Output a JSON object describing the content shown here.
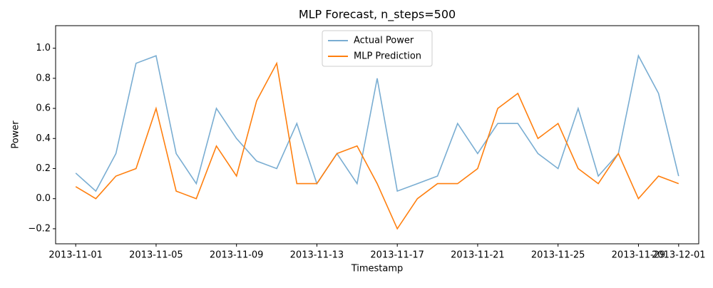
{
  "chart_data": {
    "type": "line",
    "title": "MLP Forecast, n_steps=500",
    "x_label": "Timestamp",
    "y_label": "Power",
    "x": [
      "2013-11-01",
      "2013-11-02",
      "2013-11-03",
      "2013-11-04",
      "2013-11-05",
      "2013-11-06",
      "2013-11-07",
      "2013-11-08",
      "2013-11-09",
      "2013-11-10",
      "2013-11-11",
      "2013-11-12",
      "2013-11-13",
      "2013-11-14",
      "2013-11-15",
      "2013-11-16",
      "2013-11-17",
      "2013-11-18",
      "2013-11-19",
      "2013-11-20",
      "2013-11-21",
      "2013-11-22",
      "2013-11-23",
      "2013-11-24",
      "2013-11-25",
      "2013-11-26",
      "2013-11-27",
      "2013-11-28",
      "2013-11-29",
      "2013-11-30",
      "2013-12-01"
    ],
    "series": [
      {
        "name": "Actual Power",
        "color": "#1f77b4",
        "opacity": 0.6,
        "values": [
          0.17,
          0.05,
          0.3,
          0.9,
          0.95,
          0.3,
          0.1,
          0.6,
          0.4,
          0.25,
          0.2,
          0.5,
          0.1,
          0.3,
          0.1,
          0.8,
          0.05,
          0.1,
          0.15,
          0.5,
          0.3,
          0.5,
          0.5,
          0.3,
          0.2,
          0.6,
          0.15,
          0.3,
          0.95,
          0.7,
          0.15
        ]
      },
      {
        "name": "MLP Prediction",
        "color": "#ff7f0e",
        "opacity": 1,
        "values": [
          0.08,
          0.0,
          0.15,
          0.2,
          0.6,
          0.05,
          0.0,
          0.35,
          0.15,
          0.65,
          0.9,
          0.1,
          0.1,
          0.3,
          0.35,
          0.1,
          -0.2,
          0.0,
          0.1,
          0.1,
          0.2,
          0.6,
          0.7,
          0.4,
          0.5,
          0.2,
          0.1,
          0.3,
          0.0,
          0.15,
          0.1
        ]
      }
    ],
    "xlim": [
      "2013-10-31",
      "2013-12-02"
    ],
    "xticks": [
      "2013-11-01",
      "2013-11-05",
      "2013-11-09",
      "2013-11-13",
      "2013-11-17",
      "2013-11-21",
      "2013-11-25",
      "2013-11-29",
      "2013-12-01"
    ],
    "ylim": [
      -0.3,
      1.15
    ],
    "yticks": [
      {
        "value": -0.2,
        "label": "−0.2"
      },
      {
        "value": 0,
        "label": "0.0"
      },
      {
        "value": 0.2,
        "label": "0.2"
      },
      {
        "value": 0.4,
        "label": "0.4"
      },
      {
        "value": 0.6,
        "label": "0.6"
      },
      {
        "value": 0.8,
        "label": "0.8"
      },
      {
        "value": 1,
        "label": "1.0"
      }
    ],
    "legend": "upper center"
  }
}
